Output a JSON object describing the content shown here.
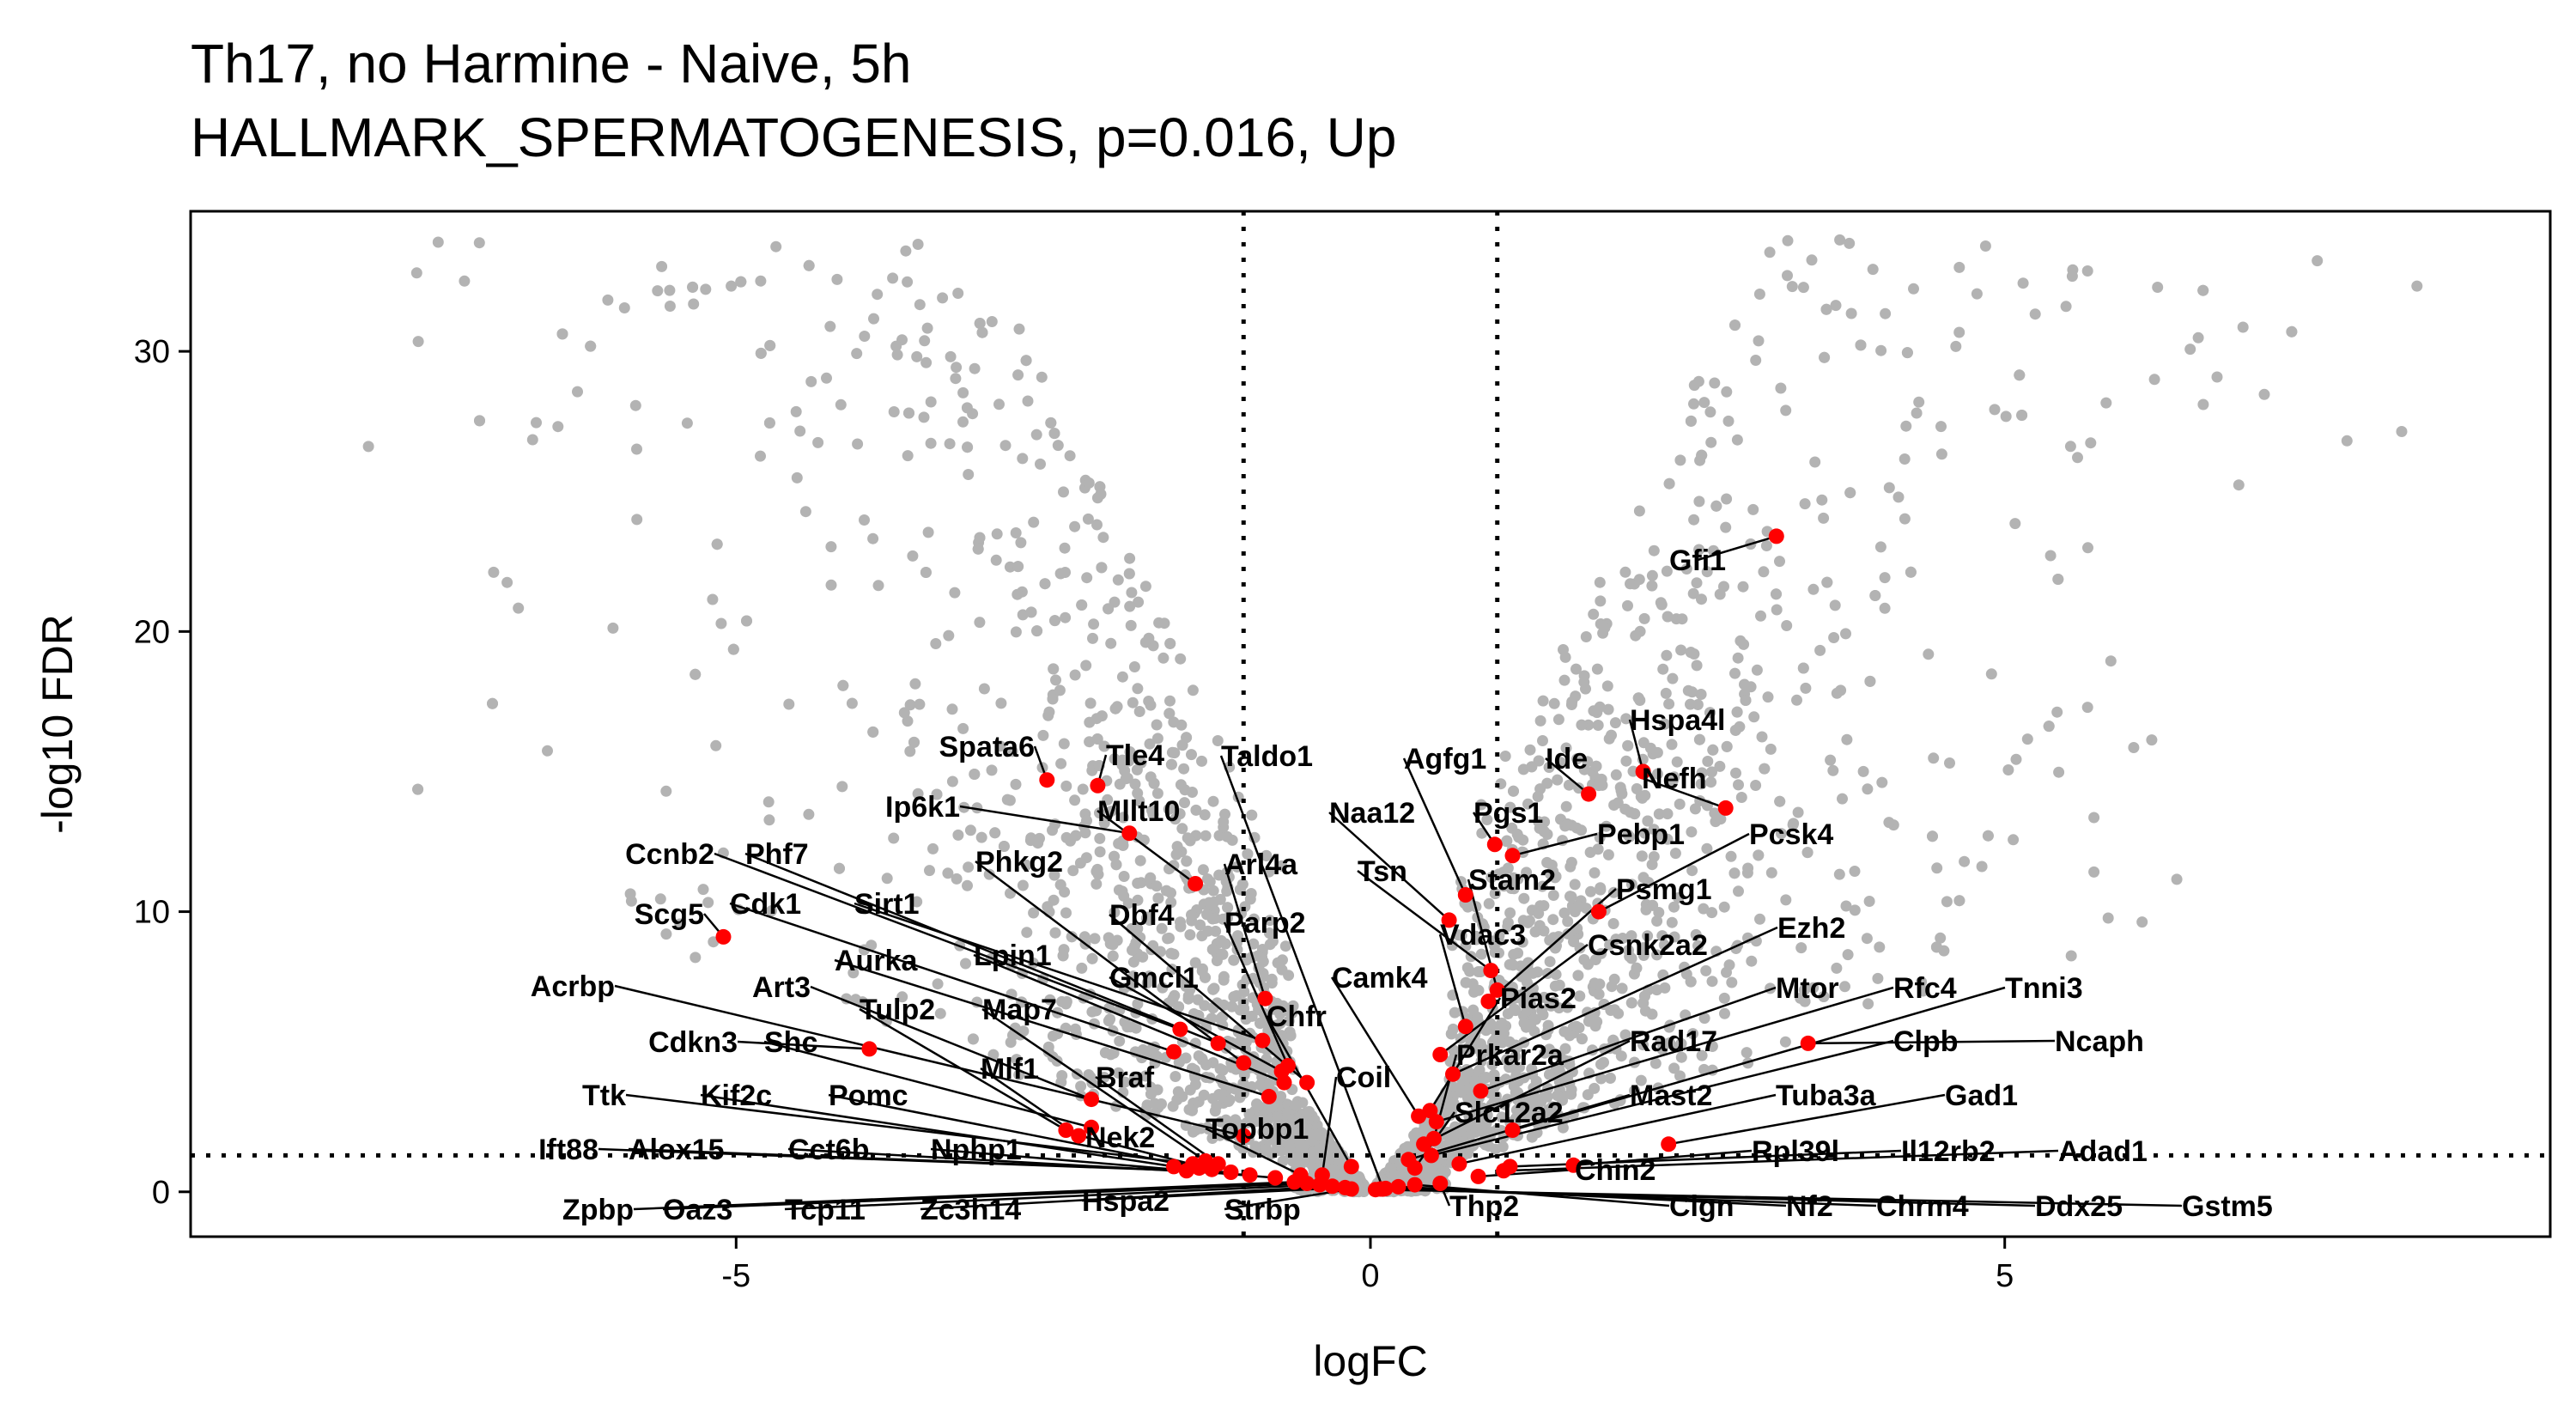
{
  "chart_data": {
    "type": "scatter",
    "title": "Th17, no Harmine - Naive, 5h",
    "subtitle": "HALLMARK_SPERMATOGENESIS, p=0.016, Up",
    "xlabel": "logFC",
    "ylabel": "-log10 FDR",
    "xlim": [
      -9.3,
      9.3
    ],
    "ylim": [
      -1.6,
      35
    ],
    "x_ticks": [
      -5,
      0,
      5
    ],
    "x_tick_labels": [
      "-5",
      "0",
      "5"
    ],
    "y_ticks": [
      0,
      10,
      20,
      30
    ],
    "y_tick_labels": [
      "0",
      "10",
      "20",
      "30"
    ],
    "grid": false,
    "legend": "none",
    "colors": {
      "background_genes": "#b3b3b3",
      "highlight_genes": "#ff0000",
      "threshold_lines": "#000000"
    },
    "threshold_lines": {
      "vertical": [
        -1,
        1
      ],
      "horizontal": 1.3
    },
    "background_points_note": "approx. 3000 grey non-highlighted genes forming two volcano arms",
    "highlighted_genes": [
      {
        "gene": "Gfi1",
        "x": 3.2,
        "y": 23.4
      },
      {
        "gene": "Hspa4l",
        "x": 2.15,
        "y": 15.0
      },
      {
        "gene": "Ide",
        "x": 1.72,
        "y": 14.2
      },
      {
        "gene": "Nefh",
        "x": 2.8,
        "y": 13.7
      },
      {
        "gene": "Pgs1",
        "x": 0.98,
        "y": 12.4
      },
      {
        "gene": "Pebp1",
        "x": 1.12,
        "y": 12.0
      },
      {
        "gene": "Pcsk4",
        "x": 1.8,
        "y": 10.0
      },
      {
        "gene": "Agfg1",
        "x": 0.75,
        "y": 10.6
      },
      {
        "gene": "Naa12",
        "x": 0.62,
        "y": 9.7
      },
      {
        "gene": "Tsn",
        "x": 0.95,
        "y": 7.9
      },
      {
        "gene": "Stam2",
        "x": 1.0,
        "y": 7.2
      },
      {
        "gene": "Psmg1",
        "x": 0.93,
        "y": 6.8
      },
      {
        "gene": "Vdac3",
        "x": 0.75,
        "y": 5.9
      },
      {
        "gene": "Csnk2a2",
        "x": 0.55,
        "y": 4.9
      },
      {
        "gene": "Ezh2",
        "x": 0.65,
        "y": 4.2
      },
      {
        "gene": "Camk4",
        "x": 0.38,
        "y": 2.7
      },
      {
        "gene": "Pias2",
        "x": 0.47,
        "y": 2.9
      },
      {
        "gene": "Mtor",
        "x": 0.87,
        "y": 3.6
      },
      {
        "gene": "Rfc4",
        "x": 0.52,
        "y": 2.5
      },
      {
        "gene": "Tnni3",
        "x": 1.12,
        "y": 2.2
      },
      {
        "gene": "Prkar2a",
        "x": 0.5,
        "y": 1.9
      },
      {
        "gene": "Rad17",
        "x": 0.42,
        "y": 1.7
      },
      {
        "gene": "Ncaph",
        "x": 3.45,
        "y": 5.3
      },
      {
        "gene": "Clpb",
        "x": 0.48,
        "y": 1.3
      },
      {
        "gene": "Mast2",
        "x": 0.3,
        "y": 1.15
      },
      {
        "gene": "Tuba3a",
        "x": 0.7,
        "y": 1.0
      },
      {
        "gene": "Gad1",
        "x": 2.35,
        "y": 1.7
      },
      {
        "gene": "Slc12a2",
        "x": 0.35,
        "y": 0.85
      },
      {
        "gene": "Rpl39l",
        "x": 1.6,
        "y": 0.95
      },
      {
        "gene": "Il12rb2",
        "x": 1.1,
        "y": 0.9
      },
      {
        "gene": "Adad1",
        "x": 1.05,
        "y": 0.75
      },
      {
        "gene": "Chin2",
        "x": 0.85,
        "y": 0.55
      },
      {
        "gene": "Thp2",
        "x": 0.55,
        "y": 0.3
      },
      {
        "gene": "Clgn",
        "x": 0.35,
        "y": 0.25
      },
      {
        "gene": "Nf2",
        "x": 0.22,
        "y": 0.18
      },
      {
        "gene": "Chrm4",
        "x": 0.12,
        "y": 0.12
      },
      {
        "gene": "Ddx25",
        "x": 0.08,
        "y": 0.1
      },
      {
        "gene": "Gstm5",
        "x": 0.04,
        "y": 0.08
      },
      {
        "gene": "Spata6",
        "x": -2.55,
        "y": 14.7
      },
      {
        "gene": "Tle4",
        "x": -2.15,
        "y": 14.5
      },
      {
        "gene": "Ip6k1",
        "x": -1.9,
        "y": 12.8
      },
      {
        "gene": "Mllt10",
        "x": -1.38,
        "y": 11.0
      },
      {
        "gene": "Ccnb2",
        "x": -1.5,
        "y": 5.8
      },
      {
        "gene": "Phf7",
        "x": -1.2,
        "y": 5.3
      },
      {
        "gene": "Scg5",
        "x": -5.1,
        "y": 9.1
      },
      {
        "gene": "Cdk1",
        "x": -1.55,
        "y": 5.0
      },
      {
        "gene": "Sirt1",
        "x": -0.85,
        "y": 5.4
      },
      {
        "gene": "Phkg2",
        "x": -1.0,
        "y": 4.6
      },
      {
        "gene": "Arl4a",
        "x": -0.83,
        "y": 6.9
      },
      {
        "gene": "Dbf4",
        "x": -0.5,
        "y": 3.9
      },
      {
        "gene": "Parp2",
        "x": -0.65,
        "y": 4.5
      },
      {
        "gene": "Aurka",
        "x": -0.8,
        "y": 3.4
      },
      {
        "gene": "Lpin1",
        "x": -0.68,
        "y": 3.9
      },
      {
        "gene": "Gmcl1",
        "x": -0.7,
        "y": 4.3
      },
      {
        "gene": "Acrbp",
        "x": -1.0,
        "y": 2.0
      },
      {
        "gene": "Art3",
        "x": -2.2,
        "y": 3.3
      },
      {
        "gene": "Tulp2",
        "x": -2.4,
        "y": 2.2
      },
      {
        "gene": "Map7",
        "x": -1.3,
        "y": 1.1
      },
      {
        "gene": "Chfr",
        "x": -0.15,
        "y": 0.9
      },
      {
        "gene": "Cdkn3",
        "x": -3.95,
        "y": 5.1
      },
      {
        "gene": "Shc",
        "x": -2.2,
        "y": 2.3
      },
      {
        "gene": "Mlf1",
        "x": -2.3,
        "y": 2.0
      },
      {
        "gene": "Braf",
        "x": -1.2,
        "y": 1.0
      },
      {
        "gene": "Coil",
        "x": -0.38,
        "y": 0.6
      },
      {
        "gene": "Ttk",
        "x": -1.4,
        "y": 1.0
      },
      {
        "gene": "Kif2c",
        "x": -1.55,
        "y": 0.9
      },
      {
        "gene": "Pomc",
        "x": -1.35,
        "y": 0.85
      },
      {
        "gene": "Nek2",
        "x": -1.25,
        "y": 0.8
      },
      {
        "gene": "Topbp1",
        "x": -0.55,
        "y": 0.6
      },
      {
        "gene": "Ift88",
        "x": -1.45,
        "y": 0.75
      },
      {
        "gene": "Alox15",
        "x": -1.1,
        "y": 0.7
      },
      {
        "gene": "Cct6b",
        "x": -0.95,
        "y": 0.6
      },
      {
        "gene": "Nphp1",
        "x": -0.75,
        "y": 0.5
      },
      {
        "gene": "Zpbp",
        "x": -0.6,
        "y": 0.35
      },
      {
        "gene": "Oaz3",
        "x": -0.5,
        "y": 0.3
      },
      {
        "gene": "Tcp11",
        "x": -0.4,
        "y": 0.25
      },
      {
        "gene": "Zc3h14",
        "x": -0.3,
        "y": 0.2
      },
      {
        "gene": "Hspa2",
        "x": -0.2,
        "y": 0.15
      },
      {
        "gene": "Strbp",
        "x": -0.15,
        "y": 0.1
      },
      {
        "gene": "Taldo1",
        "x": 0.1,
        "y": 0.1
      }
    ]
  }
}
